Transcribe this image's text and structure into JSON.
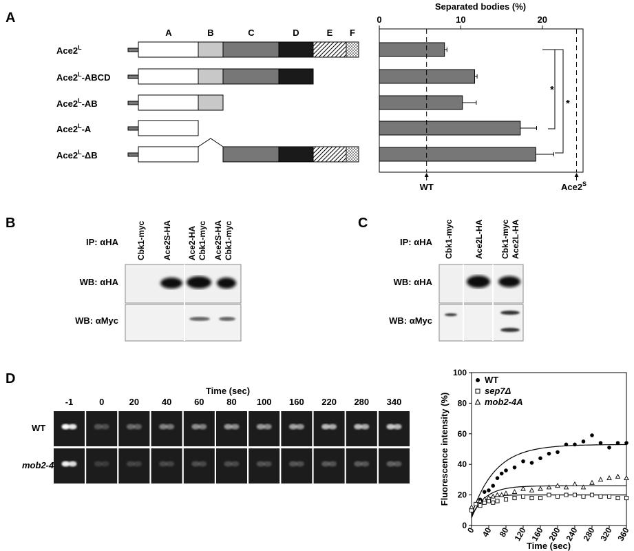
{
  "panels": {
    "a": "A",
    "b": "B",
    "c": "C",
    "d": "D"
  },
  "panel_a": {
    "domains": [
      "A",
      "B",
      "C",
      "D",
      "E",
      "F"
    ],
    "constructs": [
      {
        "base": "Ace2",
        "sup": "L",
        "suffix": ""
      },
      {
        "base": "Ace2",
        "sup": "L",
        "suffix": "-ABCD"
      },
      {
        "base": "Ace2",
        "sup": "L",
        "suffix": "-AB"
      },
      {
        "base": "Ace2",
        "sup": "L",
        "suffix": "-A"
      },
      {
        "base": "Ace2",
        "sup": "L",
        "suffix": "-ΔB"
      }
    ],
    "significance": [
      "*",
      "*"
    ],
    "wt_label": "WT",
    "ace2s_label": {
      "base": "Ace2",
      "sup": "S"
    }
  },
  "chart_data": [
    {
      "type": "bar",
      "orientation": "horizontal",
      "title": "Separated bodies (%)",
      "categories": [
        "Ace2L",
        "Ace2L-ABCD",
        "Ace2L-AB",
        "Ace2L-A",
        "Ace2L-ΔB"
      ],
      "values": [
        8.0,
        11.7,
        10.2,
        17.3,
        19.2
      ],
      "errors": [
        0.3,
        0.3,
        1.7,
        2.0,
        2.2
      ],
      "xlim": [
        0,
        25
      ],
      "xticks": [
        0,
        10,
        20
      ],
      "reference_lines": [
        {
          "label": "WT",
          "value": 5.8
        },
        {
          "label": "Ace2S",
          "value": 24.2
        }
      ]
    },
    {
      "type": "scatter",
      "xlabel": "Time (sec)",
      "ylabel": "Fluorescence intensity (%)",
      "xlim": [
        0,
        360
      ],
      "ylim": [
        0,
        100
      ],
      "xticks": [
        0,
        40,
        80,
        120,
        160,
        200,
        240,
        280,
        320,
        360
      ],
      "yticks": [
        0,
        20,
        40,
        60,
        80,
        100
      ],
      "legend_position": "top-left",
      "series": [
        {
          "name": "WT",
          "name_italic": false,
          "marker": "filled-circle",
          "x": [
            0,
            20,
            30,
            40,
            50,
            60,
            70,
            80,
            100,
            120,
            140,
            160,
            180,
            200,
            220,
            240,
            260,
            280,
            300,
            320,
            340,
            360
          ],
          "y": [
            10,
            17,
            22,
            23,
            26,
            31,
            34,
            36,
            38,
            42,
            41,
            44,
            47,
            48,
            53,
            53,
            55,
            59,
            54,
            51,
            54,
            54
          ],
          "fit": {
            "plateau": 53,
            "start": 7,
            "k": 0.018
          }
        },
        {
          "name": "sep7Δ",
          "name_italic": true,
          "marker": "open-square",
          "x": [
            0,
            10,
            20,
            30,
            40,
            50,
            60,
            80,
            100,
            120,
            140,
            160,
            180,
            200,
            220,
            240,
            260,
            280,
            300,
            320,
            340,
            360
          ],
          "y": [
            10,
            14,
            13,
            15,
            16,
            15,
            16,
            17,
            18,
            19,
            18,
            18,
            20,
            19,
            20,
            20,
            19,
            20,
            19,
            19,
            18,
            18
          ],
          "fit": {
            "plateau": 20,
            "start": 5,
            "k": 0.05
          }
        },
        {
          "name": "mob2-4A",
          "name_italic": true,
          "marker": "open-triangle",
          "x": [
            0,
            20,
            30,
            40,
            50,
            60,
            70,
            80,
            100,
            120,
            140,
            160,
            180,
            200,
            220,
            240,
            260,
            280,
            300,
            320,
            340,
            360
          ],
          "y": [
            12,
            16,
            17,
            18,
            19,
            20,
            20,
            21,
            22,
            24,
            23,
            24,
            25,
            26,
            25,
            27,
            25,
            28,
            30,
            31,
            32,
            31
          ],
          "fit": {
            "plateau": 26,
            "start": 6,
            "k": 0.03
          }
        }
      ]
    }
  ],
  "panel_b": {
    "ip_label": "IP: αHA",
    "wb_ha_label": "WB: αHA",
    "wb_myc_label": "WB: αMyc",
    "lanes": [
      [
        "Cbk1-myc"
      ],
      [
        "Ace2S-HA"
      ],
      [
        "Ace2-HA",
        "Cbk1-myc"
      ],
      [
        "Ace2S-HA",
        "Cbk1-myc"
      ]
    ]
  },
  "panel_c": {
    "ip_label": "IP: αHA",
    "wb_ha_label": "WB: αHA",
    "wb_myc_label": "WB: αMyc",
    "lanes": [
      [
        "Cbk1-myc"
      ],
      [
        "Ace2L-HA"
      ],
      [
        "Cbk1-myc",
        "Ace2L-HA"
      ]
    ]
  },
  "panel_d": {
    "time_title": "Time (sec)",
    "times": [
      "-1",
      "0",
      "20",
      "40",
      "60",
      "80",
      "100",
      "160",
      "220",
      "280",
      "340"
    ],
    "rows": [
      {
        "label": "WT"
      },
      {
        "label": "mob2-4A"
      }
    ]
  }
}
